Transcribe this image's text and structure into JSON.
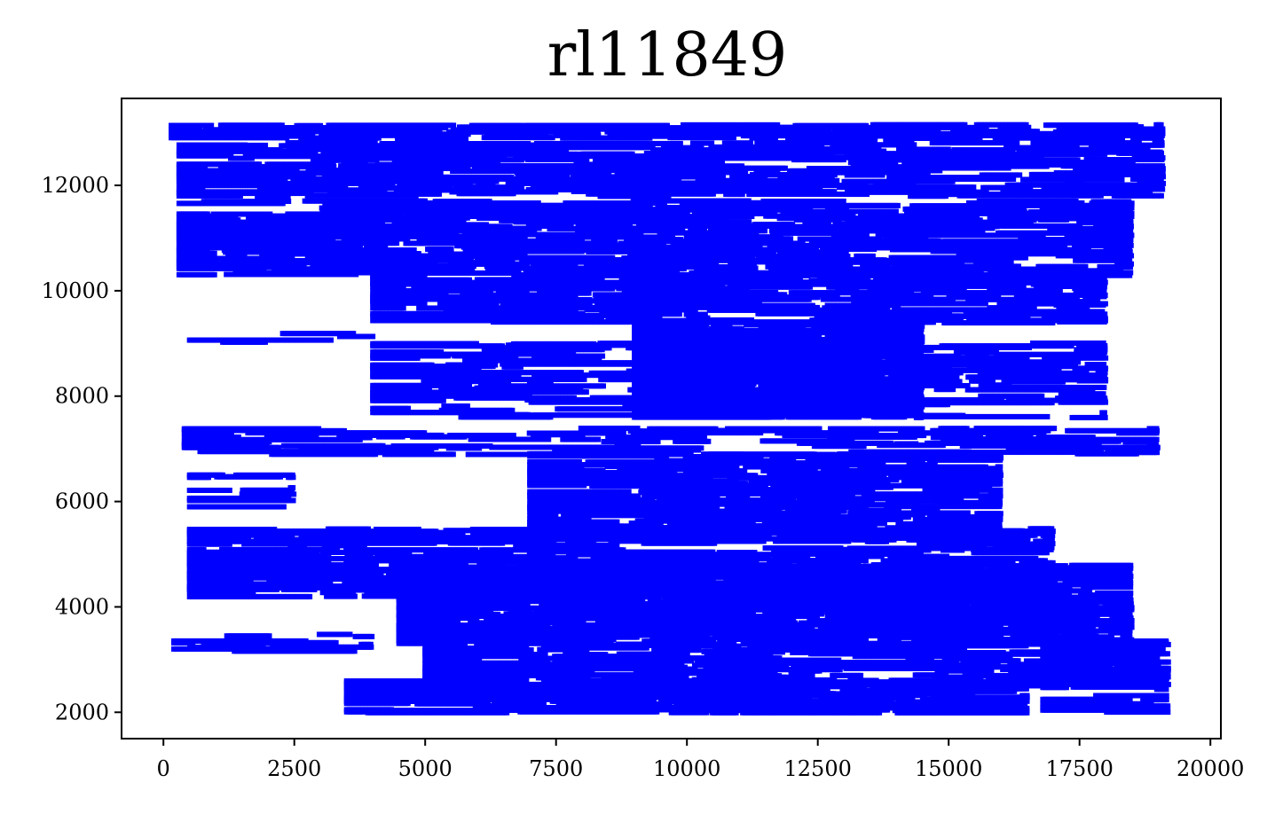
{
  "chart_data": {
    "type": "scatter",
    "title": "rl11849",
    "xlabel": "",
    "ylabel": "",
    "xlim": [
      -800,
      20200
    ],
    "ylim": [
      1500,
      13650
    ],
    "x_ticks": [
      "0",
      "2500",
      "5000",
      "7500",
      "10000",
      "12500",
      "15000",
      "17500",
      "20000"
    ],
    "y_ticks": [
      "2000",
      "4000",
      "6000",
      "8000",
      "10000",
      "12000"
    ],
    "grid": false,
    "legend": "none",
    "marker_color": "#0000ff",
    "marker": "square",
    "point_count": 11849,
    "point_bounds": {
      "x": [
        50,
        19200
      ],
      "y": [
        2000,
        13150
      ]
    },
    "regions": [
      {
        "x": [
          150,
          19100
        ],
        "y": [
          12900,
          13150
        ],
        "density": 0.9
      },
      {
        "x": [
          300,
          19100
        ],
        "y": [
          11800,
          12800
        ],
        "density": 0.75
      },
      {
        "x": [
          300,
          18500
        ],
        "y": [
          10300,
          11700
        ],
        "density": 0.8
      },
      {
        "x": [
          4000,
          18000
        ],
        "y": [
          9400,
          10300
        ],
        "density": 0.75
      },
      {
        "x": [
          500,
          4000
        ],
        "y": [
          8900,
          9200
        ],
        "density": 0.35
      },
      {
        "x": [
          9000,
          14500
        ],
        "y": [
          7600,
          9400
        ],
        "density": 0.95
      },
      {
        "x": [
          4000,
          18000
        ],
        "y": [
          7600,
          9000
        ],
        "density": 0.5
      },
      {
        "x": [
          400,
          19000
        ],
        "y": [
          6900,
          7400
        ],
        "density": 0.6
      },
      {
        "x": [
          500,
          2500
        ],
        "y": [
          5900,
          6600
        ],
        "density": 0.4
      },
      {
        "x": [
          7000,
          16000
        ],
        "y": [
          5300,
          6900
        ],
        "density": 0.75
      },
      {
        "x": [
          500,
          17000
        ],
        "y": [
          4200,
          5500
        ],
        "density": 0.8
      },
      {
        "x": [
          4500,
          18500
        ],
        "y": [
          3300,
          4800
        ],
        "density": 0.9
      },
      {
        "x": [
          200,
          4000
        ],
        "y": [
          3000,
          3500
        ],
        "density": 0.3
      },
      {
        "x": [
          5000,
          19000
        ],
        "y": [
          2500,
          3300
        ],
        "density": 0.7
      },
      {
        "x": [
          3500,
          16500
        ],
        "y": [
          2000,
          2600
        ],
        "density": 0.9
      },
      {
        "x": [
          16800,
          19200
        ],
        "y": [
          2000,
          3500
        ],
        "density": 0.5
      }
    ]
  }
}
